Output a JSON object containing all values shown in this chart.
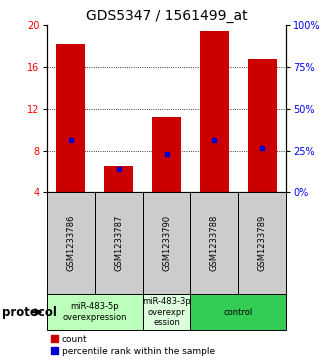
{
  "title": "GDS5347 / 1561499_at",
  "samples": [
    "GSM1233786",
    "GSM1233787",
    "GSM1233790",
    "GSM1233788",
    "GSM1233789"
  ],
  "bar_heights": [
    18.2,
    6.5,
    11.2,
    19.5,
    16.8
  ],
  "blue_marker_values": [
    9.0,
    6.2,
    7.7,
    9.0,
    8.3
  ],
  "ylim_left": [
    4,
    20
  ],
  "ylim_right": [
    0,
    100
  ],
  "yticks_left": [
    4,
    8,
    12,
    16,
    20
  ],
  "yticks_right": [
    0,
    25,
    50,
    75,
    100
  ],
  "bar_color": "#cc0000",
  "blue_color": "#0000cc",
  "bar_width": 0.6,
  "protocols": [
    {
      "label": "miR-483-5p\noverexpression",
      "indices": [
        0,
        1
      ],
      "color": "#bbffbb"
    },
    {
      "label": "miR-483-3p\noverexpr\nession",
      "indices": [
        2
      ],
      "color": "#ddffdd"
    },
    {
      "label": "control",
      "indices": [
        3,
        4
      ],
      "color": "#33cc55"
    }
  ],
  "protocol_label": "protocol",
  "legend_count_label": "count",
  "legend_percentile_label": "percentile rank within the sample",
  "sample_box_color": "#cccccc",
  "title_fontsize": 10,
  "tick_fontsize": 7,
  "sample_fontsize": 6,
  "proto_fontsize": 6,
  "legend_fontsize": 6.5
}
